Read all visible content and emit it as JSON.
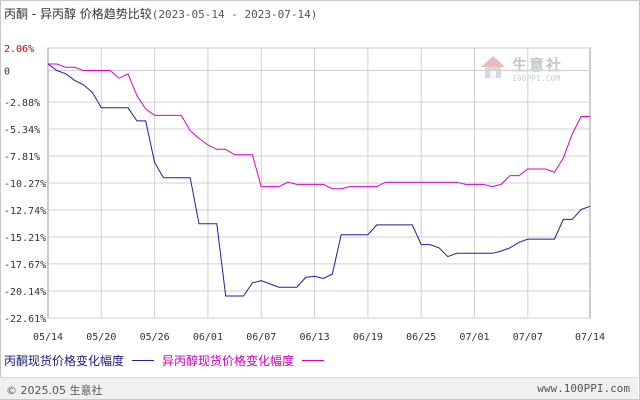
{
  "header": {
    "title": "丙酮 - 异丙醇 价格趋势比较",
    "date_range": "(2023-05-14 - 2023-07-14)"
  },
  "watermark": {
    "brand": "生意社",
    "url": "100PPI.COM"
  },
  "footer": {
    "copyright": "© 2025.05 生意社",
    "website": "www.100PPI.com"
  },
  "chart_data": {
    "type": "line",
    "x_ticks": [
      "05/14",
      "05/20",
      "05/26",
      "06/01",
      "06/07",
      "06/13",
      "06/19",
      "06/25",
      "07/01",
      "07/07",
      "07/14"
    ],
    "x_range": [
      "05/14",
      "07/14"
    ],
    "y_ticks": [
      "2.06%",
      "0",
      "-2.88%",
      "-5.34%",
      "-7.81%",
      "-10.27%",
      "-12.74%",
      "-15.21%",
      "-17.67%",
      "-20.14%",
      "-22.61%"
    ],
    "y_tick_values": [
      2.06,
      0,
      -2.88,
      -5.34,
      -7.81,
      -10.27,
      -12.74,
      -15.21,
      -17.67,
      -20.14,
      -22.61
    ],
    "ylim": [
      -22.61,
      2.06
    ],
    "grid": true,
    "legend_position": "bottom-left",
    "series": [
      {
        "name": "丙酮现货价格变化幅度",
        "color": "#1f1fa0",
        "points": [
          [
            "05/14",
            0.6
          ],
          [
            "05/15",
            0
          ],
          [
            "05/16",
            -0.3
          ],
          [
            "05/17",
            -0.9
          ],
          [
            "05/18",
            -1.3
          ],
          [
            "05/19",
            -2.0
          ],
          [
            "05/20",
            -3.4
          ],
          [
            "05/21",
            -3.4
          ],
          [
            "05/22",
            -3.4
          ],
          [
            "05/23",
            -3.4
          ],
          [
            "05/24",
            -4.6
          ],
          [
            "05/25",
            -4.6
          ],
          [
            "05/26",
            -8.4
          ],
          [
            "05/27",
            -9.8
          ],
          [
            "05/28",
            -9.8
          ],
          [
            "05/29",
            -9.8
          ],
          [
            "05/30",
            -9.8
          ],
          [
            "05/31",
            -14.0
          ],
          [
            "06/01",
            -14.0
          ],
          [
            "06/02",
            -14.0
          ],
          [
            "06/03",
            -20.6
          ],
          [
            "06/04",
            -20.6
          ],
          [
            "06/05",
            -20.6
          ],
          [
            "06/06",
            -19.4
          ],
          [
            "06/07",
            -19.2
          ],
          [
            "06/08",
            -19.5
          ],
          [
            "06/09",
            -19.8
          ],
          [
            "06/10",
            -19.8
          ],
          [
            "06/11",
            -19.8
          ],
          [
            "06/12",
            -18.9
          ],
          [
            "06/13",
            -18.8
          ],
          [
            "06/14",
            -19.0
          ],
          [
            "06/15",
            -18.6
          ],
          [
            "06/16",
            -15.0
          ],
          [
            "06/17",
            -15.0
          ],
          [
            "06/18",
            -15.0
          ],
          [
            "06/19",
            -15.0
          ],
          [
            "06/20",
            -14.1
          ],
          [
            "06/21",
            -14.1
          ],
          [
            "06/22",
            -14.1
          ],
          [
            "06/23",
            -14.1
          ],
          [
            "06/24",
            -14.1
          ],
          [
            "06/25",
            -15.9
          ],
          [
            "06/26",
            -15.9
          ],
          [
            "06/27",
            -16.2
          ],
          [
            "06/28",
            -17.0
          ],
          [
            "06/29",
            -16.7
          ],
          [
            "06/30",
            -16.7
          ],
          [
            "07/01",
            -16.7
          ],
          [
            "07/02",
            -16.7
          ],
          [
            "07/03",
            -16.7
          ],
          [
            "07/04",
            -16.5
          ],
          [
            "07/05",
            -16.2
          ],
          [
            "07/06",
            -15.7
          ],
          [
            "07/07",
            -15.4
          ],
          [
            "07/08",
            -15.4
          ],
          [
            "07/09",
            -15.4
          ],
          [
            "07/10",
            -15.4
          ],
          [
            "07/11",
            -13.6
          ],
          [
            "07/12",
            -13.6
          ],
          [
            "07/13",
            -12.7
          ],
          [
            "07/14",
            -12.4
          ]
        ]
      },
      {
        "name": "异丙醇现货价格变化幅度",
        "color": "#dd00cc",
        "points": [
          [
            "05/14",
            0.6
          ],
          [
            "05/15",
            0.6
          ],
          [
            "05/16",
            0.3
          ],
          [
            "05/17",
            0.3
          ],
          [
            "05/18",
            0
          ],
          [
            "05/19",
            0
          ],
          [
            "05/20",
            0
          ],
          [
            "05/21",
            0
          ],
          [
            "05/22",
            -0.7
          ],
          [
            "05/23",
            -0.3
          ],
          [
            "05/24",
            -2.3
          ],
          [
            "05/25",
            -3.5
          ],
          [
            "05/26",
            -4.1
          ],
          [
            "05/27",
            -4.1
          ],
          [
            "05/28",
            -4.1
          ],
          [
            "05/29",
            -4.1
          ],
          [
            "05/30",
            -5.5
          ],
          [
            "05/31",
            -6.2
          ],
          [
            "06/01",
            -6.8
          ],
          [
            "06/02",
            -7.2
          ],
          [
            "06/03",
            -7.2
          ],
          [
            "06/04",
            -7.7
          ],
          [
            "06/05",
            -7.7
          ],
          [
            "06/06",
            -7.7
          ],
          [
            "06/07",
            -10.6
          ],
          [
            "06/08",
            -10.6
          ],
          [
            "06/09",
            -10.6
          ],
          [
            "06/10",
            -10.2
          ],
          [
            "06/11",
            -10.4
          ],
          [
            "06/12",
            -10.4
          ],
          [
            "06/13",
            -10.4
          ],
          [
            "06/14",
            -10.4
          ],
          [
            "06/15",
            -10.8
          ],
          [
            "06/16",
            -10.8
          ],
          [
            "06/17",
            -10.6
          ],
          [
            "06/18",
            -10.6
          ],
          [
            "06/19",
            -10.6
          ],
          [
            "06/20",
            -10.6
          ],
          [
            "06/21",
            -10.2
          ],
          [
            "06/22",
            -10.2
          ],
          [
            "06/23",
            -10.2
          ],
          [
            "06/24",
            -10.2
          ],
          [
            "06/25",
            -10.2
          ],
          [
            "06/26",
            -10.2
          ],
          [
            "06/27",
            -10.2
          ],
          [
            "06/28",
            -10.2
          ],
          [
            "06/29",
            -10.2
          ],
          [
            "06/30",
            -10.4
          ],
          [
            "07/01",
            -10.4
          ],
          [
            "07/02",
            -10.4
          ],
          [
            "07/03",
            -10.6
          ],
          [
            "07/04",
            -10.4
          ],
          [
            "07/05",
            -9.6
          ],
          [
            "07/06",
            -9.6
          ],
          [
            "07/07",
            -9.0
          ],
          [
            "07/08",
            -9.0
          ],
          [
            "07/09",
            -9.0
          ],
          [
            "07/10",
            -9.3
          ],
          [
            "07/11",
            -8.0
          ],
          [
            "07/12",
            -5.8
          ],
          [
            "07/13",
            -4.2
          ],
          [
            "07/14",
            -4.2
          ]
        ]
      }
    ]
  }
}
